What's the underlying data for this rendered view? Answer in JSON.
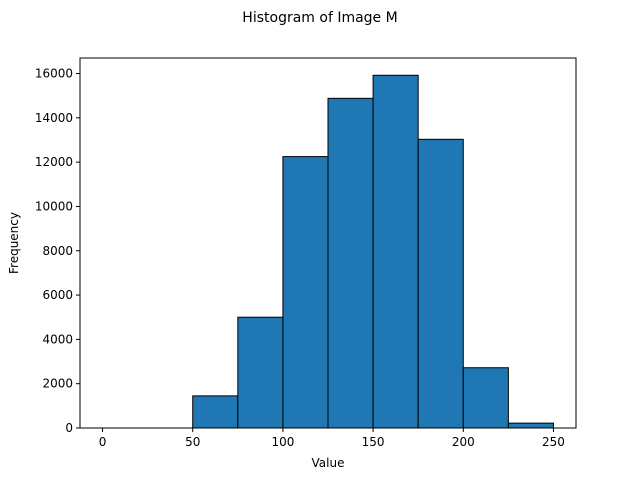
{
  "chart_data": {
    "type": "bar",
    "title": "Histogram of Image M",
    "xlabel": "Value",
    "ylabel": "Frequency",
    "bins": [
      {
        "start": 0,
        "end": 25,
        "value": 0
      },
      {
        "start": 25,
        "end": 50,
        "value": 0
      },
      {
        "start": 50,
        "end": 75,
        "value": 1450
      },
      {
        "start": 75,
        "end": 100,
        "value": 5000
      },
      {
        "start": 100,
        "end": 125,
        "value": 12250
      },
      {
        "start": 125,
        "end": 150,
        "value": 14880
      },
      {
        "start": 150,
        "end": 175,
        "value": 15920
      },
      {
        "start": 175,
        "end": 200,
        "value": 13030
      },
      {
        "start": 200,
        "end": 225,
        "value": 2720
      },
      {
        "start": 225,
        "end": 250,
        "value": 220
      }
    ],
    "xlim": [
      -12.5,
      262.5
    ],
    "ylim": [
      0,
      16700
    ],
    "xticks": [
      0,
      50,
      100,
      150,
      200,
      250
    ],
    "yticks": [
      0,
      2000,
      4000,
      6000,
      8000,
      10000,
      12000,
      14000,
      16000
    ],
    "bar_color": "#1f77b4",
    "edge_color": "#000000",
    "grid": false,
    "legend": null
  }
}
